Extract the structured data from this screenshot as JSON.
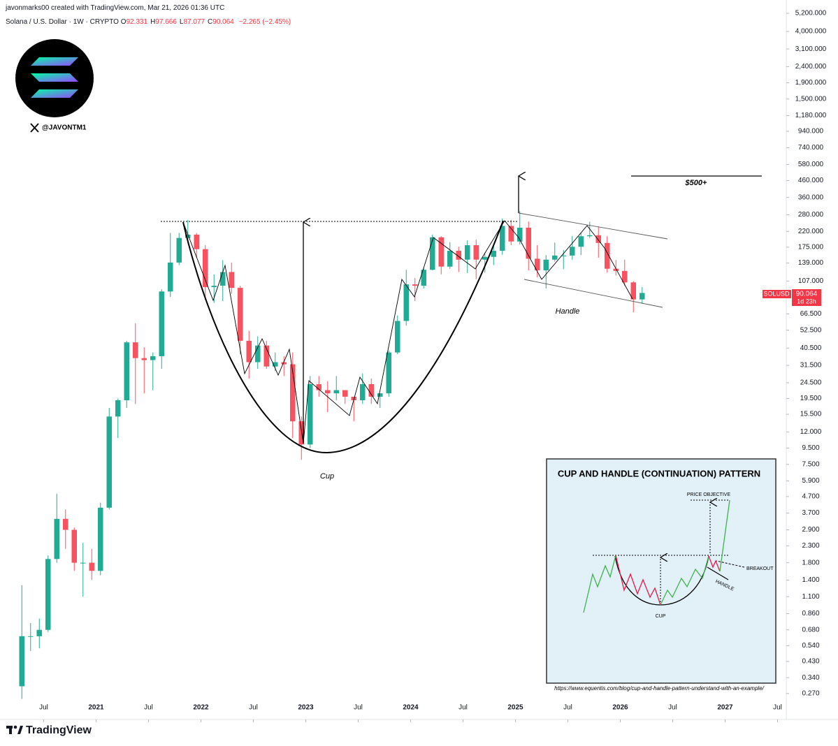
{
  "header": {
    "created": "javonmarks00 created with TradingView.com, Mar 21, 2026 01:36 UTC",
    "symbol": "Solana / U.S. Dollar · 1W · CRYPTO",
    "ohlc": [
      {
        "label": "O",
        "value": 92.331
      },
      {
        "label": "H",
        "value": 97.666
      },
      {
        "label": "L",
        "value": 87.077
      },
      {
        "label": "C",
        "value": 90.064
      }
    ],
    "change": "−2.265",
    "change_pct": "(−2.45%)"
  },
  "watermark": {
    "handle": "@JAVONTM1",
    "brand": "TradingView"
  },
  "chart_data": {
    "type": "candlestick",
    "log_scale": true,
    "up_color": "#22ab94",
    "down_color": "#f7525f",
    "x": [
      "2020-04",
      "2020-05",
      "2020-06",
      "2020-07",
      "2020-08",
      "2020-09",
      "2020-10",
      "2020-11",
      "2020-12",
      "2021-01",
      "2021-02",
      "2021-03",
      "2021-04",
      "2021-05",
      "2021-06",
      "2021-07",
      "2021-08",
      "2021-09",
      "2021-10",
      "2021-11",
      "2021-12",
      "2022-01",
      "2022-02",
      "2022-03",
      "2022-04",
      "2022-05",
      "2022-06",
      "2022-07",
      "2022-08",
      "2022-09",
      "2022-10",
      "2022-11",
      "2022-12",
      "2023-01",
      "2023-02",
      "2023-03",
      "2023-04",
      "2023-05",
      "2023-06",
      "2023-07",
      "2023-08",
      "2023-09",
      "2023-10",
      "2023-11",
      "2023-12",
      "2024-01",
      "2024-02",
      "2024-03",
      "2024-04",
      "2024-05",
      "2024-06",
      "2024-07",
      "2024-08",
      "2024-09",
      "2024-10",
      "2024-11",
      "2024-12",
      "2025-01",
      "2025-02",
      "2025-03",
      "2025-04",
      "2025-05",
      "2025-06",
      "2025-07",
      "2025-08",
      "2025-09",
      "2025-10",
      "2025-11",
      "2025-12",
      "2026-01",
      "2026-02",
      "2026-03"
    ],
    "open": [
      0.3,
      0.62,
      0.62,
      0.68,
      1.9,
      3.4,
      2.9,
      1.8,
      1.8,
      1.6,
      4.0,
      15,
      19,
      44,
      35,
      34,
      36,
      92,
      140,
      200,
      210,
      170,
      98,
      100,
      122,
      97,
      45,
      33,
      42,
      31,
      33,
      32,
      14,
      10,
      24,
      22,
      21,
      22,
      20,
      19,
      24,
      20,
      21,
      38,
      60,
      102,
      100,
      126,
      202,
      132,
      166,
      146,
      180,
      146,
      152,
      166,
      238,
      190,
      232,
      148,
      125,
      146,
      155,
      155,
      176,
      205,
      208,
      186,
      128,
      124,
      105,
      82
    ],
    "high": [
      1.3,
      0.75,
      0.8,
      2.0,
      4.9,
      3.9,
      3.0,
      2.4,
      2.2,
      4.3,
      17,
      19.5,
      45,
      58,
      41,
      38,
      95,
      215,
      215,
      260,
      215,
      180,
      118,
      145,
      140,
      100,
      52,
      48,
      45,
      38,
      36,
      38,
      15,
      27,
      27,
      25,
      27,
      22,
      20,
      28,
      26,
      21,
      39,
      65,
      126,
      112,
      130,
      210,
      205,
      188,
      176,
      193,
      195,
      162,
      180,
      265,
      260,
      295,
      254,
      180,
      156,
      187,
      168,
      205,
      216,
      253,
      236,
      205,
      145,
      146,
      107,
      98
    ],
    "low": [
      0.25,
      0.5,
      0.52,
      0.66,
      1.8,
      2.2,
      1.6,
      1.1,
      1.4,
      1.5,
      3.9,
      11,
      17,
      18,
      21,
      22,
      30,
      85,
      135,
      185,
      150,
      81,
      78,
      80,
      89,
      37,
      26,
      30,
      30,
      29,
      27,
      11,
      8.0,
      9.5,
      20,
      16,
      19,
      18,
      14,
      18,
      18,
      17,
      20,
      37,
      56,
      80,
      96,
      125,
      118,
      128,
      122,
      120,
      110,
      121,
      135,
      157,
      180,
      182,
      125,
      113,
      96,
      142,
      127,
      146,
      156,
      200,
      150,
      121,
      116,
      100,
      68,
      77
    ],
    "close": [
      0.62,
      0.62,
      0.68,
      1.9,
      3.4,
      2.9,
      1.8,
      1.8,
      1.6,
      4.0,
      15,
      19,
      44,
      35,
      34,
      36,
      92,
      140,
      200,
      210,
      170,
      98,
      100,
      122,
      97,
      45,
      33,
      42,
      31,
      33,
      32,
      14,
      10,
      24,
      22,
      21,
      22,
      20,
      19,
      24,
      20,
      21,
      38,
      60,
      102,
      100,
      126,
      202,
      132,
      166,
      146,
      180,
      146,
      152,
      166,
      238,
      190,
      232,
      148,
      125,
      146,
      155,
      155,
      176,
      205,
      208,
      186,
      128,
      124,
      105,
      82,
      90.064
    ],
    "xlim": [
      "2020-02",
      "2027-08"
    ],
    "xticks": [
      {
        "value": "2020-07",
        "label": "Jul"
      },
      {
        "value": "2021-01",
        "label": "2021"
      },
      {
        "value": "2021-07",
        "label": "Jul"
      },
      {
        "value": "2022-01",
        "label": "2022"
      },
      {
        "value": "2022-07",
        "label": "Jul"
      },
      {
        "value": "2023-01",
        "label": "2023"
      },
      {
        "value": "2023-07",
        "label": "Jul"
      },
      {
        "value": "2024-01",
        "label": "2024"
      },
      {
        "value": "2024-07",
        "label": "Jul"
      },
      {
        "value": "2025-01",
        "label": "2025"
      },
      {
        "value": "2025-07",
        "label": "Jul"
      },
      {
        "value": "2026-01",
        "label": "2026"
      },
      {
        "value": "2026-07",
        "label": "Jul"
      },
      {
        "value": "2027-01",
        "label": "2027"
      },
      {
        "value": "2027-07",
        "label": "Jul"
      }
    ],
    "ylim": [
      0.227,
      5700
    ],
    "yticks": [
      {
        "value": 5200,
        "label": "5,200.000"
      },
      {
        "value": 4000,
        "label": "4,000.000"
      },
      {
        "value": 3100,
        "label": "3,100.000"
      },
      {
        "value": 2400,
        "label": "2,400.000"
      },
      {
        "value": 1900,
        "label": "1,900.000"
      },
      {
        "value": 1500,
        "label": "1,500.000"
      },
      {
        "value": 1180,
        "label": "1,180.000"
      },
      {
        "value": 940,
        "label": "940.000"
      },
      {
        "value": 740,
        "label": "740.000"
      },
      {
        "value": 580,
        "label": "580.000"
      },
      {
        "value": 460,
        "label": "460.000"
      },
      {
        "value": 360,
        "label": "360.000"
      },
      {
        "value": 280,
        "label": "280.000"
      },
      {
        "value": 220,
        "label": "220.000"
      },
      {
        "value": 175,
        "label": "175.000"
      },
      {
        "value": 139,
        "label": "139.000"
      },
      {
        "value": 107,
        "label": "107.000"
      },
      {
        "value": 66.5,
        "label": "66.500"
      },
      {
        "value": 52.5,
        "label": "52.500"
      },
      {
        "value": 40.5,
        "label": "40.500"
      },
      {
        "value": 31.5,
        "label": "31.500"
      },
      {
        "value": 24.5,
        "label": "24.500"
      },
      {
        "value": 19.5,
        "label": "19.500"
      },
      {
        "value": 15.5,
        "label": "15.500"
      },
      {
        "value": 12,
        "label": "12.000"
      },
      {
        "value": 9.5,
        "label": "9.500"
      },
      {
        "value": 7.5,
        "label": "7.500"
      },
      {
        "value": 5.9,
        "label": "5.900"
      },
      {
        "value": 4.7,
        "label": "4.700"
      },
      {
        "value": 3.7,
        "label": "3.700"
      },
      {
        "value": 2.9,
        "label": "2.900"
      },
      {
        "value": 2.3,
        "label": "2.300"
      },
      {
        "value": 1.8,
        "label": "1.800"
      },
      {
        "value": 1.4,
        "label": "1.400"
      },
      {
        "value": 1.1,
        "label": "1.100"
      },
      {
        "value": 0.86,
        "label": "0.860"
      },
      {
        "value": 0.68,
        "label": "0.680"
      },
      {
        "value": 0.54,
        "label": "0.540"
      },
      {
        "value": 0.43,
        "label": "0.430"
      },
      {
        "value": 0.34,
        "label": "0.340"
      },
      {
        "value": 0.27,
        "label": "0.270"
      }
    ],
    "grid": false,
    "price_label": {
      "symbol": "SOLUSD",
      "price": "90.064",
      "countdown": "1d 23h"
    },
    "annotations": {
      "cup": "Cup",
      "handle": "Handle",
      "target": "$500+"
    },
    "inset": {
      "title": "CUP AND HANDLE (CONTINUATION) PATTERN",
      "price_objective": "PRICE OBJECTIVE",
      "breakout": "BREAKOUT",
      "handle": "HANDLE",
      "cup": "CUP",
      "source": "https://www.equentis.com/blog/cup-and-handle-pattern-understand-with-an-example/"
    }
  }
}
